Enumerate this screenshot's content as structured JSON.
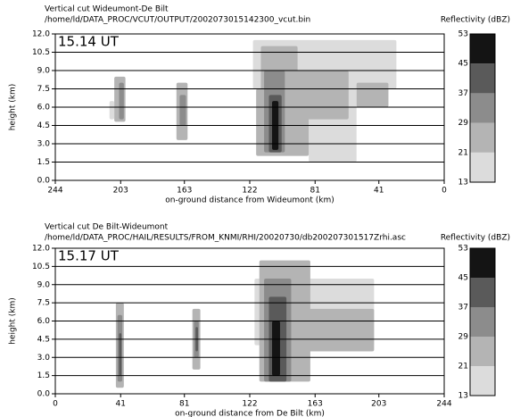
{
  "chart_data": [
    {
      "type": "heatmap",
      "title": "Vertical cut Wideumont-De Bilt",
      "subtitle": "/home/ld/DATA_PROC/VCUT/OUTPUT/2002073015142300_vcut.bin",
      "colorbar_title": "Reflectivity (dBZ)",
      "annotation": "15.14 UT",
      "y_label": "height (km)",
      "x_label": "on-ground distance from Wideumont (km)",
      "xlim": [
        244,
        0
      ],
      "xticks": [
        244,
        203,
        163,
        122,
        81,
        41,
        0
      ],
      "ylim": [
        0,
        12
      ],
      "yticks": [
        {
          "value": 0,
          "label": "0.0"
        },
        {
          "value": 1.5,
          "label": "1.5"
        },
        {
          "value": 3,
          "label": "3.0"
        },
        {
          "value": 4.5,
          "label": "4.5"
        },
        {
          "value": 6,
          "label": "6.0"
        },
        {
          "value": 7.5,
          "label": "7.5"
        },
        {
          "value": 9,
          "label": "9.0"
        },
        {
          "value": 10.5,
          "label": "10.5"
        },
        {
          "value": 12,
          "label": "12.0"
        }
      ],
      "grid": true,
      "levels": [
        13,
        21,
        29,
        37,
        45,
        53
      ],
      "colors": [
        "#dcdcdc",
        "#b4b4b4",
        "#8c8c8c",
        "#5a5a5a",
        "#141414"
      ],
      "cells": [
        {
          "x": [
            210,
            207
          ],
          "y": [
            5,
            6.5
          ],
          "dbz": 13
        },
        {
          "x": [
            207,
            200
          ],
          "y": [
            4.8,
            8.5
          ],
          "dbz": 21
        },
        {
          "x": [
            204,
            201
          ],
          "y": [
            5,
            8
          ],
          "dbz": 29
        },
        {
          "x": [
            168,
            161
          ],
          "y": [
            3.3,
            8
          ],
          "dbz": 21
        },
        {
          "x": [
            166,
            162
          ],
          "y": [
            4.5,
            7
          ],
          "dbz": 29
        },
        {
          "x": [
            120,
            30
          ],
          "y": [
            7.5,
            11.5
          ],
          "dbz": 13
        },
        {
          "x": [
            85,
            55
          ],
          "y": [
            1.5,
            7.5
          ],
          "dbz": 13
        },
        {
          "x": [
            118,
            85
          ],
          "y": [
            2,
            7.5
          ],
          "dbz": 21
        },
        {
          "x": [
            95,
            60
          ],
          "y": [
            5,
            9
          ],
          "dbz": 21
        },
        {
          "x": [
            55,
            35
          ],
          "y": [
            6,
            8
          ],
          "dbz": 21
        },
        {
          "x": [
            115,
            92
          ],
          "y": [
            4,
            11
          ],
          "dbz": 21
        },
        {
          "x": [
            113,
            100
          ],
          "y": [
            2.3,
            9
          ],
          "dbz": 29
        },
        {
          "x": [
            110,
            102
          ],
          "y": [
            2.3,
            7
          ],
          "dbz": 37
        },
        {
          "x": [
            108,
            104
          ],
          "y": [
            2.5,
            6.5
          ],
          "dbz": 45
        }
      ]
    },
    {
      "type": "heatmap",
      "title": "Vertical cut De Bilt-Wideumont",
      "subtitle": "/home/ld/DATA_PROC/HAIL/RESULTS/FROM_KNMI/RHI/20020730/db200207301517Zrhi.asc",
      "colorbar_title": "Reflectivity (dBZ)",
      "annotation": "15.17 UT",
      "y_label": "height (km)",
      "x_label": "on-ground distance from De Bilt (km)",
      "xlim": [
        0,
        244
      ],
      "xticks": [
        0,
        41,
        81,
        122,
        163,
        203,
        244
      ],
      "ylim": [
        0,
        12
      ],
      "yticks": [
        {
          "value": 0,
          "label": "0.0"
        },
        {
          "value": 1.5,
          "label": "1.5"
        },
        {
          "value": 3,
          "label": "3.0"
        },
        {
          "value": 4.5,
          "label": "4.5"
        },
        {
          "value": 6,
          "label": "6.0"
        },
        {
          "value": 7.5,
          "label": "7.5"
        },
        {
          "value": 9,
          "label": "9.0"
        },
        {
          "value": 10.5,
          "label": "10.5"
        },
        {
          "value": 12,
          "label": "12.0"
        }
      ],
      "grid": true,
      "levels": [
        13,
        21,
        29,
        37,
        45,
        53
      ],
      "colors": [
        "#dcdcdc",
        "#b4b4b4",
        "#8c8c8c",
        "#5a5a5a",
        "#141414"
      ],
      "cells": [
        {
          "x": [
            38,
            43
          ],
          "y": [
            0.5,
            7.5
          ],
          "dbz": 21
        },
        {
          "x": [
            39,
            42
          ],
          "y": [
            1,
            6.5
          ],
          "dbz": 29
        },
        {
          "x": [
            40,
            41.5
          ],
          "y": [
            1.5,
            5
          ],
          "dbz": 37
        },
        {
          "x": [
            86,
            91
          ],
          "y": [
            2,
            7
          ],
          "dbz": 21
        },
        {
          "x": [
            87,
            90
          ],
          "y": [
            3,
            6
          ],
          "dbz": 29
        },
        {
          "x": [
            88,
            89.5
          ],
          "y": [
            3.5,
            5.5
          ],
          "dbz": 37
        },
        {
          "x": [
            125,
            200
          ],
          "y": [
            4,
            9.5
          ],
          "dbz": 13
        },
        {
          "x": [
            150,
            200
          ],
          "y": [
            3.5,
            7
          ],
          "dbz": 21
        },
        {
          "x": [
            128,
            160
          ],
          "y": [
            1,
            11
          ],
          "dbz": 21
        },
        {
          "x": [
            131,
            148
          ],
          "y": [
            1,
            9.5
          ],
          "dbz": 29
        },
        {
          "x": [
            134,
            145
          ],
          "y": [
            1,
            8
          ],
          "dbz": 37
        },
        {
          "x": [
            136,
            141
          ],
          "y": [
            1.5,
            6
          ],
          "dbz": 45
        }
      ]
    }
  ]
}
